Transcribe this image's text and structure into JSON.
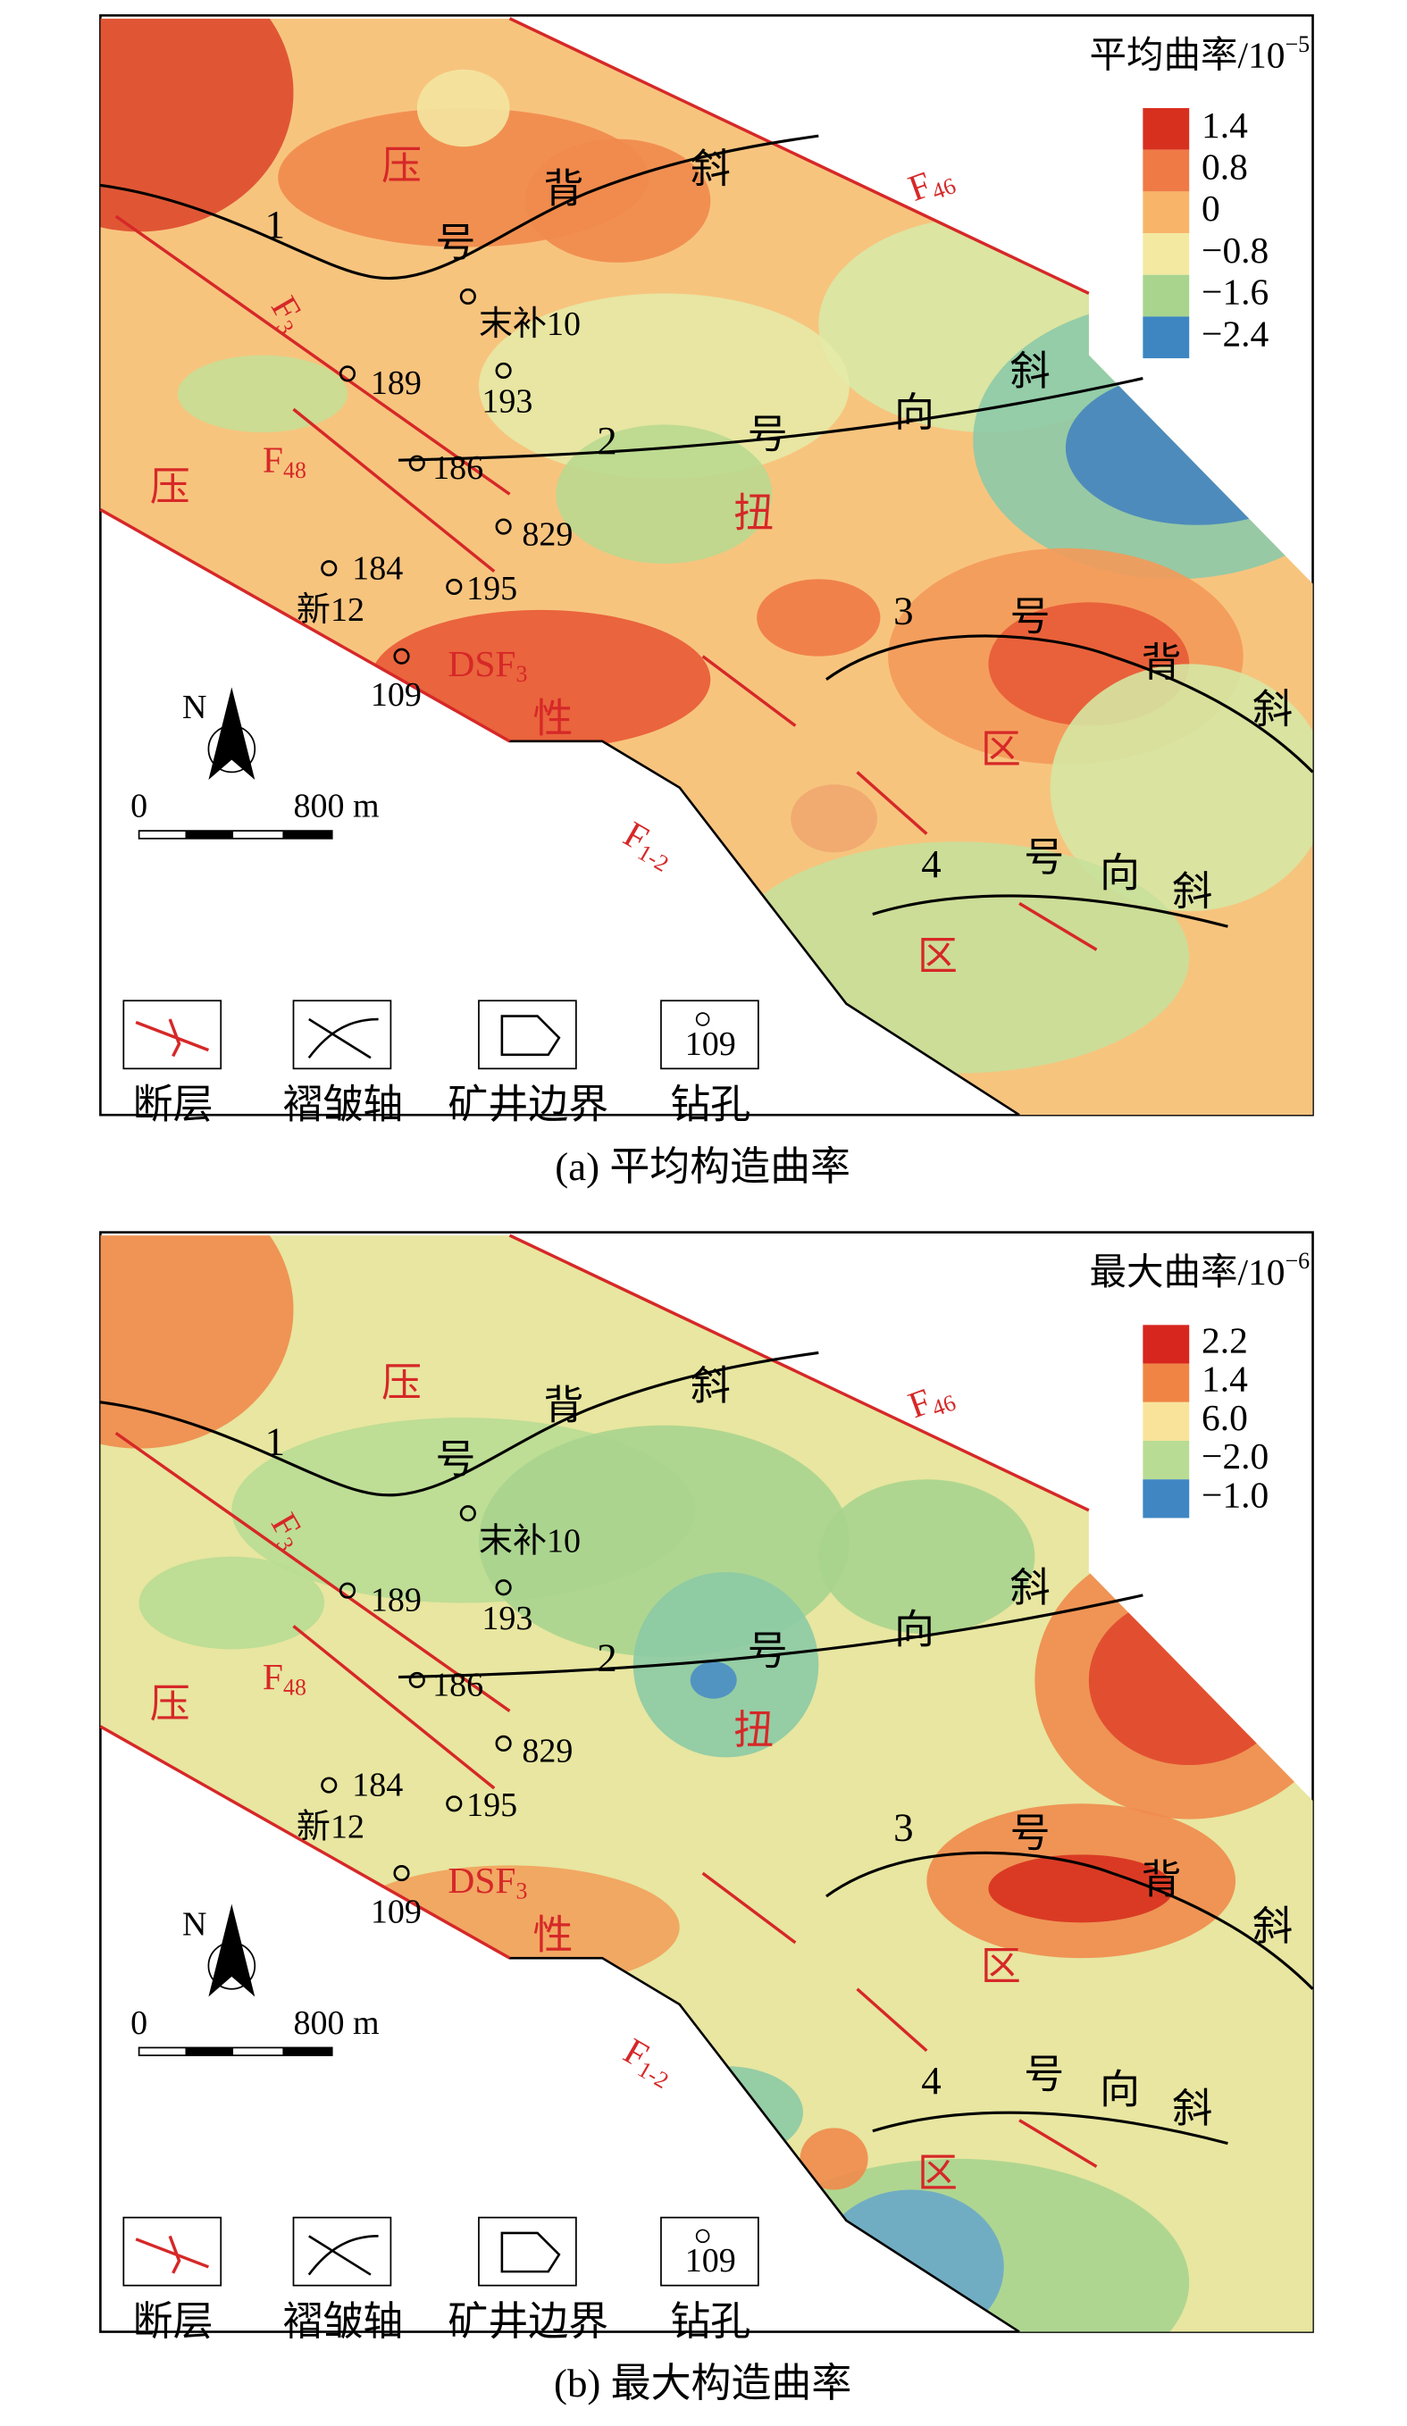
{
  "panels": [
    {
      "caption": "(a) 平均构造曲率",
      "legend": {
        "title": "平均曲率/10",
        "exponent": "−5",
        "ticks": [
          "1.4",
          "0.8",
          "0",
          "−0.8",
          "−1.6",
          "−2.4"
        ],
        "colors": [
          "#d7301f",
          "#ef7a45",
          "#f8b56a",
          "#f3e9a0",
          "#a8d48e",
          "#3d86c2"
        ]
      }
    },
    {
      "caption": "(b) 最大构造曲率",
      "legend": {
        "title": "最大曲率/10",
        "exponent": "−6",
        "ticks": [
          "2.2",
          "1.4",
          "6.0",
          "−2.0",
          "−1.0"
        ],
        "colors": [
          "#d7261e",
          "#f08445",
          "#f9e39a",
          "#b9dc94",
          "#3f86c3"
        ]
      }
    }
  ],
  "map": {
    "region_labels": [
      "压",
      "压",
      "扭",
      "性",
      "区",
      "区"
    ],
    "fold_labels": [
      "1",
      "号",
      "背",
      "斜",
      "2",
      "号",
      "向",
      "斜",
      "3",
      "号",
      "背",
      "斜",
      "4",
      "号",
      "向",
      "斜"
    ],
    "faults": [
      {
        "name": "F",
        "sub": "46"
      },
      {
        "name": "F",
        "sub": "3"
      },
      {
        "name": "F",
        "sub": "48"
      },
      {
        "name": "DSF",
        "sub": "3"
      },
      {
        "name": "F",
        "sub": "1-2"
      }
    ],
    "boreholes": [
      "末补10",
      "189",
      "193",
      "186",
      "829",
      "184",
      "新12",
      "195",
      "109"
    ],
    "north": "N",
    "scale": [
      "0",
      "800 m"
    ],
    "key": [
      "断层",
      "褶皱轴",
      "矿井边界",
      "钻孔"
    ],
    "key_sample": "109"
  }
}
